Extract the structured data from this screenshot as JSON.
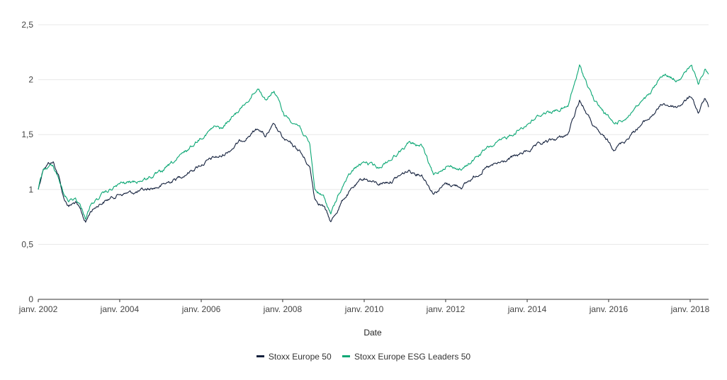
{
  "chart_data": {
    "type": "line",
    "title": "",
    "xlabel": "Date",
    "ylabel": "",
    "xlim": [
      "2002-01-01",
      "2018-06-15"
    ],
    "ylim": [
      0,
      2.5
    ],
    "y_ticks": [
      0,
      0.5,
      1,
      1.5,
      2,
      2.5
    ],
    "y_tick_labels": [
      "0",
      "0,5",
      "1",
      "1,5",
      "2",
      "2,5"
    ],
    "x_ticks": [
      "2002-01-01",
      "2004-01-01",
      "2006-01-01",
      "2008-01-01",
      "2010-01-01",
      "2012-01-01",
      "2014-01-01",
      "2016-01-01",
      "2018-01-01"
    ],
    "x_tick_labels": [
      "janv. 2002",
      "janv. 2004",
      "janv. 2006",
      "janv. 2008",
      "janv. 2010",
      "janv. 2012",
      "janv. 2014",
      "janv. 2016",
      "janv. 2018"
    ],
    "grid": "horizontal",
    "legend_position": "bottom",
    "series": [
      {
        "name": "Stoxx Europe 50",
        "color": "#14213d",
        "points": [
          [
            "2002-01-01",
            1.0
          ],
          [
            "2002-02-15",
            1.2
          ],
          [
            "2002-04-01",
            1.24
          ],
          [
            "2002-05-15",
            1.25
          ],
          [
            "2002-07-01",
            1.13
          ],
          [
            "2002-08-15",
            0.93
          ],
          [
            "2002-10-01",
            0.85
          ],
          [
            "2002-12-01",
            0.88
          ],
          [
            "2003-01-15",
            0.8
          ],
          [
            "2003-03-01",
            0.7
          ],
          [
            "2003-04-15",
            0.8
          ],
          [
            "2003-07-01",
            0.87
          ],
          [
            "2004-01-01",
            0.96
          ],
          [
            "2004-07-01",
            0.98
          ],
          [
            "2005-01-01",
            1.03
          ],
          [
            "2005-07-01",
            1.12
          ],
          [
            "2006-01-01",
            1.23
          ],
          [
            "2006-05-01",
            1.29
          ],
          [
            "2006-07-01",
            1.3
          ],
          [
            "2007-01-01",
            1.45
          ],
          [
            "2007-06-01",
            1.56
          ],
          [
            "2007-08-01",
            1.48
          ],
          [
            "2007-10-15",
            1.58
          ],
          [
            "2008-01-15",
            1.45
          ],
          [
            "2008-06-01",
            1.35
          ],
          [
            "2008-09-01",
            1.2
          ],
          [
            "2008-10-15",
            0.92
          ],
          [
            "2009-01-01",
            0.85
          ],
          [
            "2009-03-08",
            0.7
          ],
          [
            "2009-07-01",
            0.92
          ],
          [
            "2009-10-01",
            1.02
          ],
          [
            "2010-01-01",
            1.1
          ],
          [
            "2010-05-01",
            1.05
          ],
          [
            "2010-09-01",
            1.08
          ],
          [
            "2011-02-01",
            1.17
          ],
          [
            "2011-06-01",
            1.14
          ],
          [
            "2011-09-15",
            0.97
          ],
          [
            "2012-01-01",
            1.05
          ],
          [
            "2012-06-01",
            1.03
          ],
          [
            "2012-12-01",
            1.18
          ],
          [
            "2013-06-01",
            1.25
          ],
          [
            "2014-01-01",
            1.35
          ],
          [
            "2014-06-01",
            1.42
          ],
          [
            "2015-01-01",
            1.5
          ],
          [
            "2015-04-15",
            1.82
          ],
          [
            "2015-09-01",
            1.55
          ],
          [
            "2016-02-15",
            1.38
          ],
          [
            "2016-06-01",
            1.45
          ],
          [
            "2016-09-01",
            1.55
          ],
          [
            "2017-01-01",
            1.65
          ],
          [
            "2017-05-01",
            1.78
          ],
          [
            "2017-09-01",
            1.75
          ],
          [
            "2018-01-15",
            1.85
          ],
          [
            "2018-03-15",
            1.7
          ],
          [
            "2018-05-15",
            1.83
          ],
          [
            "2018-06-15",
            1.75
          ]
        ]
      },
      {
        "name": "Stoxx Europe ESG Leaders 50",
        "color": "#0ba774",
        "points": [
          [
            "2002-01-01",
            1.0
          ],
          [
            "2002-02-15",
            1.18
          ],
          [
            "2002-04-01",
            1.2
          ],
          [
            "2002-05-15",
            1.22
          ],
          [
            "2002-07-01",
            1.12
          ],
          [
            "2002-08-15",
            0.96
          ],
          [
            "2002-10-01",
            0.9
          ],
          [
            "2002-12-01",
            0.92
          ],
          [
            "2003-01-15",
            0.85
          ],
          [
            "2003-03-01",
            0.75
          ],
          [
            "2003-04-15",
            0.85
          ],
          [
            "2003-07-01",
            0.93
          ],
          [
            "2004-01-01",
            1.05
          ],
          [
            "2004-07-01",
            1.08
          ],
          [
            "2005-01-01",
            1.15
          ],
          [
            "2005-07-01",
            1.3
          ],
          [
            "2006-01-01",
            1.48
          ],
          [
            "2006-05-01",
            1.57
          ],
          [
            "2006-07-01",
            1.55
          ],
          [
            "2007-01-01",
            1.75
          ],
          [
            "2007-06-01",
            1.93
          ],
          [
            "2007-08-01",
            1.82
          ],
          [
            "2007-10-15",
            1.9
          ],
          [
            "2008-01-15",
            1.68
          ],
          [
            "2008-06-01",
            1.58
          ],
          [
            "2008-09-01",
            1.4
          ],
          [
            "2008-10-15",
            1.0
          ],
          [
            "2009-01-01",
            0.93
          ],
          [
            "2009-03-08",
            0.78
          ],
          [
            "2009-07-01",
            1.05
          ],
          [
            "2009-10-01",
            1.18
          ],
          [
            "2010-01-01",
            1.25
          ],
          [
            "2010-05-01",
            1.2
          ],
          [
            "2010-09-01",
            1.28
          ],
          [
            "2011-02-01",
            1.42
          ],
          [
            "2011-06-01",
            1.4
          ],
          [
            "2011-09-15",
            1.12
          ],
          [
            "2012-01-01",
            1.22
          ],
          [
            "2012-06-01",
            1.18
          ],
          [
            "2012-12-01",
            1.35
          ],
          [
            "2013-06-01",
            1.45
          ],
          [
            "2014-01-01",
            1.6
          ],
          [
            "2014-06-01",
            1.7
          ],
          [
            "2015-01-01",
            1.75
          ],
          [
            "2015-04-15",
            2.12
          ],
          [
            "2015-09-01",
            1.8
          ],
          [
            "2016-02-15",
            1.6
          ],
          [
            "2016-06-01",
            1.65
          ],
          [
            "2016-09-01",
            1.75
          ],
          [
            "2017-01-01",
            1.85
          ],
          [
            "2017-05-01",
            2.05
          ],
          [
            "2017-09-01",
            2.0
          ],
          [
            "2018-01-15",
            2.12
          ],
          [
            "2018-03-15",
            1.95
          ],
          [
            "2018-05-15",
            2.1
          ],
          [
            "2018-06-15",
            2.05
          ]
        ]
      }
    ]
  }
}
